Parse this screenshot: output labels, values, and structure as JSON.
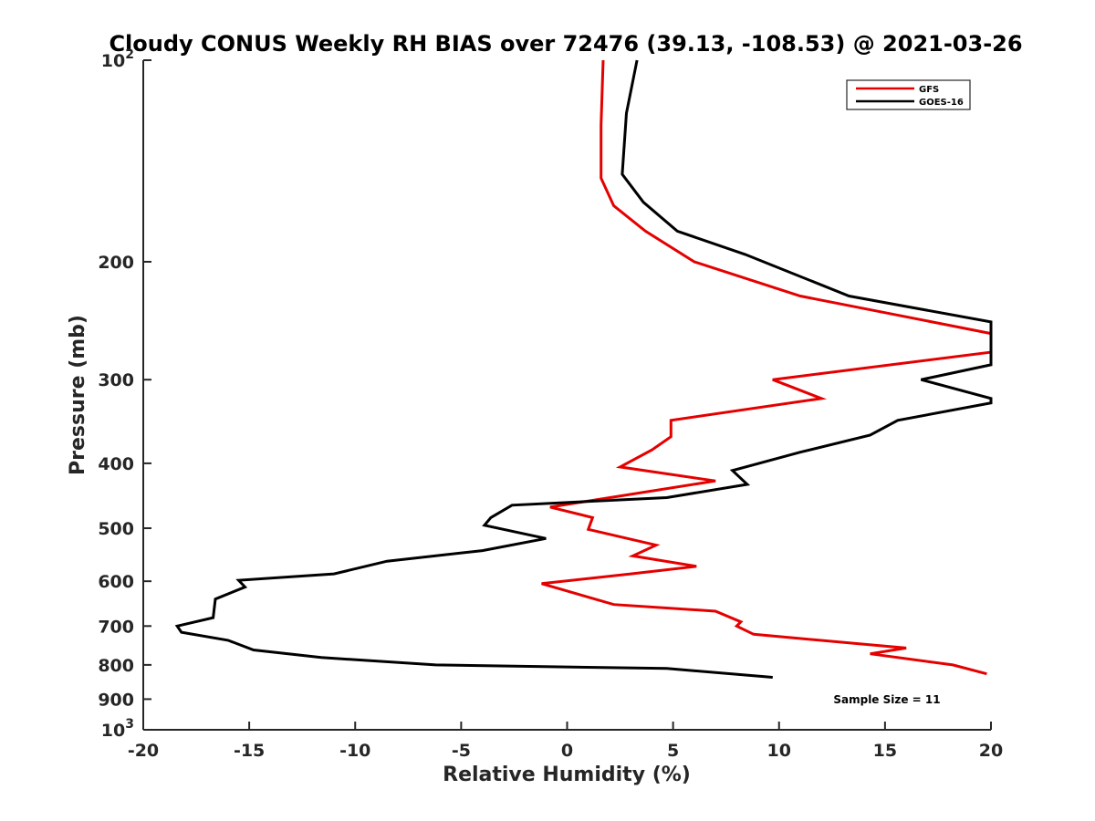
{
  "chart_data": {
    "type": "line",
    "title": "Cloudy CONUS Weekly RH BIAS over 72476 (39.13, -108.53) @ 2021-03-26",
    "xlabel": "Relative Humidity (%)",
    "ylabel": "Pressure (mb)",
    "xlim": [
      -20,
      20
    ],
    "ylim": [
      100,
      1000
    ],
    "y_scale": "log",
    "y_reversed": true,
    "grid": false,
    "legend_position": "top-right",
    "x_ticks": [
      "-20",
      "-15",
      "-10",
      "-5",
      "0",
      "5",
      "10",
      "15",
      "20"
    ],
    "y_ticks": [
      {
        "value": 100,
        "base": "10",
        "exp": "2"
      },
      {
        "value": 200,
        "label": "200"
      },
      {
        "value": 300,
        "label": "300"
      },
      {
        "value": 400,
        "label": "400"
      },
      {
        "value": 500,
        "label": "500"
      },
      {
        "value": 600,
        "label": "600"
      },
      {
        "value": 700,
        "label": "700"
      },
      {
        "value": 800,
        "label": "800"
      },
      {
        "value": 900,
        "label": "900"
      },
      {
        "value": 1000,
        "base": "10",
        "exp": "3"
      }
    ],
    "annotation": "Sample Size = 11",
    "series": [
      {
        "name": "GFS",
        "color": "#e50000",
        "points": [
          [
            1.7,
            100
          ],
          [
            1.6,
            125
          ],
          [
            1.6,
            150
          ],
          [
            2.2,
            165
          ],
          [
            3.7,
            180
          ],
          [
            6.0,
            200
          ],
          [
            11.0,
            225
          ],
          [
            20.0,
            256
          ],
          [
            20.0,
            273
          ],
          [
            9.7,
            300
          ],
          [
            12.0,
            320
          ],
          [
            4.9,
            345
          ],
          [
            4.9,
            365
          ],
          [
            4.0,
            382
          ],
          [
            2.5,
            405
          ],
          [
            7.0,
            425
          ],
          [
            -0.8,
            465
          ],
          [
            1.2,
            482
          ],
          [
            1.0,
            502
          ],
          [
            4.2,
            530
          ],
          [
            3.1,
            550
          ],
          [
            6.1,
            570
          ],
          [
            3.0,
            585
          ],
          [
            -1.2,
            605
          ],
          [
            2.2,
            650
          ],
          [
            7.0,
            665
          ],
          [
            8.2,
            690
          ],
          [
            8.0,
            700
          ],
          [
            8.8,
            720
          ],
          [
            16.0,
            755
          ],
          [
            14.3,
            770
          ],
          [
            18.2,
            800
          ],
          [
            19.8,
            825
          ]
        ]
      },
      {
        "name": "GOES-16",
        "color": "#000000",
        "points": [
          [
            3.3,
            100
          ],
          [
            2.8,
            120
          ],
          [
            2.6,
            148
          ],
          [
            3.6,
            163
          ],
          [
            5.2,
            180
          ],
          [
            8.4,
            195
          ],
          [
            13.3,
            225
          ],
          [
            20.0,
            246
          ],
          [
            20.0,
            285
          ],
          [
            16.7,
            300
          ],
          [
            20.0,
            320
          ],
          [
            20.0,
            325
          ],
          [
            15.6,
            345
          ],
          [
            14.3,
            363
          ],
          [
            11.0,
            385
          ],
          [
            7.8,
            410
          ],
          [
            8.5,
            430
          ],
          [
            4.7,
            450
          ],
          [
            -2.6,
            462
          ],
          [
            -3.6,
            482
          ],
          [
            -3.9,
            495
          ],
          [
            -1.0,
            518
          ],
          [
            -4.0,
            540
          ],
          [
            -8.5,
            560
          ],
          [
            -11.0,
            585
          ],
          [
            -15.5,
            598
          ],
          [
            -15.2,
            612
          ],
          [
            -16.6,
            638
          ],
          [
            -16.7,
            680
          ],
          [
            -18.4,
            700
          ],
          [
            -18.2,
            715
          ],
          [
            -16.0,
            735
          ],
          [
            -14.8,
            760
          ],
          [
            -11.6,
            780
          ],
          [
            -6.2,
            800
          ],
          [
            4.7,
            810
          ],
          [
            9.7,
            835
          ]
        ]
      }
    ]
  }
}
